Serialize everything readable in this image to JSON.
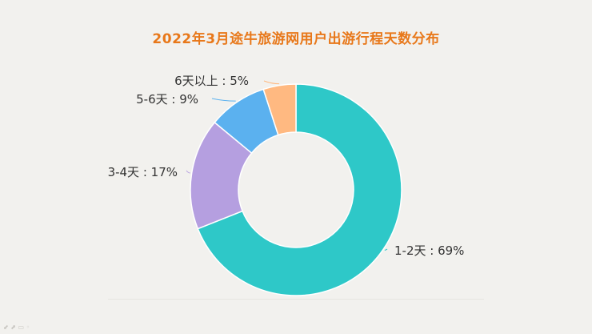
{
  "chart_data": {
    "type": "pie",
    "title": "2022年3月途牛旅游网用户出游行程天数分布",
    "categories": [
      "1-2天",
      "3-4天",
      "5-6天",
      "6天以上"
    ],
    "values": [
      69,
      17,
      9,
      5
    ],
    "labels": [
      "1-2天 : 69%",
      "3-4天 : 17%",
      "5-6天 : 9%",
      "6天以上 : 5%"
    ],
    "colors": [
      "#2ec8c8",
      "#b59fe0",
      "#5bb1ef",
      "#ffb981"
    ],
    "unit": "%",
    "legend": "none"
  }
}
